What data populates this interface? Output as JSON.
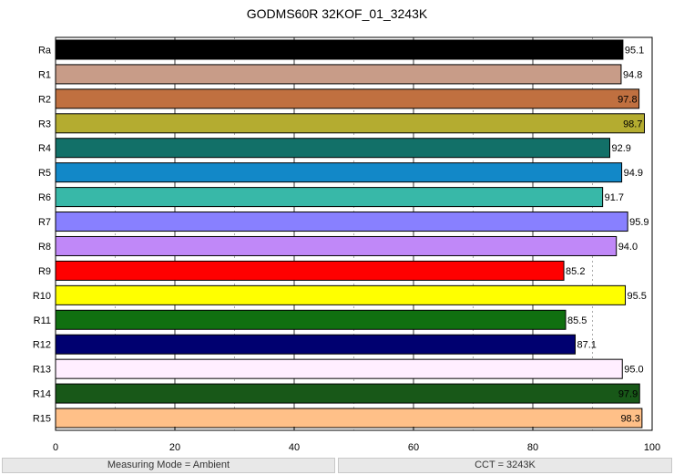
{
  "chart_data": {
    "type": "bar",
    "orientation": "horizontal",
    "title": "GODMS60R 32KOF_01_3243K",
    "xlabel": "",
    "ylabel": "",
    "xlim": [
      0,
      100
    ],
    "x_ticks": [
      "0",
      "20",
      "40",
      "60",
      "80",
      "100"
    ],
    "grid": true,
    "categories": [
      "Ra",
      "R1",
      "R2",
      "R3",
      "R4",
      "R5",
      "R6",
      "R7",
      "R8",
      "R9",
      "R10",
      "R11",
      "R12",
      "R13",
      "R14",
      "R15"
    ],
    "values": [
      95.1,
      94.8,
      97.8,
      98.7,
      92.9,
      94.9,
      91.7,
      95.9,
      94.0,
      85.2,
      95.5,
      85.5,
      87.1,
      95.0,
      97.9,
      98.3
    ],
    "value_labels": [
      "95.1",
      "94.8",
      "97.8",
      "98.7",
      "92.9",
      "94.9",
      "91.7",
      "95.9",
      "94.0",
      "85.2",
      "95.5",
      "85.5",
      "87.1",
      "95.0",
      "97.9",
      "98.3"
    ],
    "colors": [
      "#000000",
      "#c89c88",
      "#c07040",
      "#b4ac30",
      "#127068",
      "#1288c8",
      "#38b8a8",
      "#8880ff",
      "#c088f8",
      "#ff0000",
      "#ffff00",
      "#107010",
      "#000070",
      "#ffeeff",
      "#185818",
      "#ffc088"
    ],
    "label_inside": [
      false,
      false,
      true,
      true,
      false,
      false,
      false,
      false,
      false,
      false,
      false,
      false,
      false,
      false,
      true,
      true
    ]
  },
  "footer": {
    "left": "Measuring Mode = Ambient",
    "right": "CCT = 3243K"
  }
}
